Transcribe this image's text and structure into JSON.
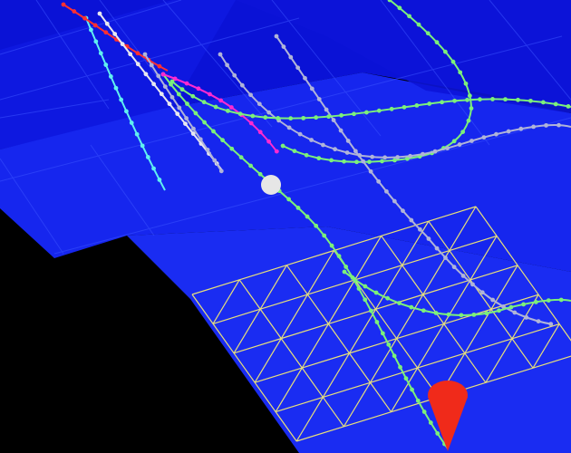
{
  "scene": {
    "background_color": "#000000",
    "surface_color_dark": "#0a10d8",
    "surface_color_mid": "#1e2bf2",
    "surface_color_light": "#2a46f0",
    "grid_color": "#e8e07a",
    "ball_color": "#e6e6e6",
    "marker_color": "#f02a1a"
  },
  "trajectories": [
    {
      "name": "trajectory-green-main",
      "color": "#7cf07a"
    },
    {
      "name": "trajectory-green-upper",
      "color": "#7cf07a"
    },
    {
      "name": "trajectory-gray",
      "color": "#b0b4d8"
    },
    {
      "name": "trajectory-cyan",
      "color": "#60f0f0"
    },
    {
      "name": "trajectory-magenta",
      "color": "#ff2ad0"
    },
    {
      "name": "trajectory-red",
      "color": "#ff3030"
    },
    {
      "name": "trajectory-white",
      "color": "#e8e8f0"
    }
  ]
}
